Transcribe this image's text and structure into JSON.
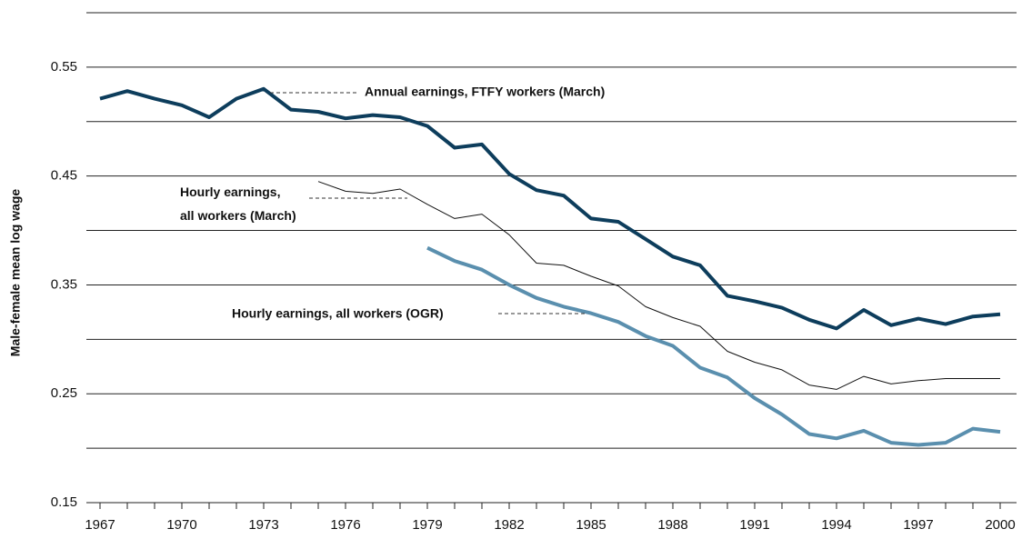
{
  "chart_data": {
    "type": "line",
    "y_label": "Male-female mean log wage",
    "x": [
      1967,
      1968,
      1969,
      1970,
      1971,
      1972,
      1973,
      1974,
      1975,
      1976,
      1977,
      1978,
      1979,
      1980,
      1981,
      1982,
      1983,
      1984,
      1985,
      1986,
      1987,
      1988,
      1989,
      1990,
      1991,
      1992,
      1993,
      1994,
      1995,
      1996,
      1997,
      1998,
      1999,
      2000
    ],
    "series": [
      {
        "name": "Annual earnings, FTFY workers (March)",
        "color": "#0d3d5c",
        "width": 4,
        "values": [
          0.521,
          0.528,
          0.521,
          0.515,
          0.504,
          0.521,
          0.53,
          0.511,
          0.509,
          0.503,
          0.506,
          0.504,
          0.496,
          0.476,
          0.479,
          0.452,
          0.437,
          0.432,
          0.411,
          0.408,
          0.392,
          0.376,
          0.368,
          0.34,
          0.335,
          0.329,
          0.318,
          0.31,
          0.327,
          0.313,
          0.319,
          0.314,
          0.321,
          0.323
        ]
      },
      {
        "name": "Hourly earnings, all workers (March)",
        "color": "#111111",
        "width": 1,
        "values": [
          null,
          null,
          null,
          null,
          null,
          null,
          null,
          null,
          0.445,
          0.436,
          0.434,
          0.438,
          0.424,
          0.411,
          0.415,
          0.396,
          0.37,
          0.368,
          0.358,
          0.349,
          0.33,
          0.32,
          0.312,
          0.289,
          0.279,
          0.272,
          0.258,
          0.254,
          0.266,
          0.259,
          0.262,
          0.264,
          0.264,
          0.264
        ]
      },
      {
        "name": "Hourly earnings, all workers (OGR)",
        "color": "#5a8fae",
        "width": 4,
        "values": [
          null,
          null,
          null,
          null,
          null,
          null,
          null,
          null,
          null,
          null,
          null,
          null,
          0.384,
          0.372,
          0.364,
          0.35,
          0.338,
          0.33,
          0.324,
          0.316,
          0.303,
          0.294,
          0.274,
          0.265,
          0.246,
          0.231,
          0.213,
          0.209,
          0.216,
          0.205,
          0.203,
          0.205,
          0.218,
          0.215
        ]
      }
    ],
    "xlim": [
      1966.5,
      2000.6
    ],
    "xticks": [
      1967,
      {
        "value": 1968,
        "label": null
      },
      {
        "value": 1969,
        "label": null
      },
      1970,
      {
        "value": 1971,
        "label": null
      },
      {
        "value": 1972,
        "label": null
      },
      1973,
      {
        "value": 1974,
        "label": null
      },
      {
        "value": 1975,
        "label": null
      },
      1976,
      {
        "value": 1977,
        "label": null
      },
      {
        "value": 1978,
        "label": null
      },
      1979,
      {
        "value": 1980,
        "label": null
      },
      {
        "value": 1981,
        "label": null
      },
      1982,
      {
        "value": 1983,
        "label": null
      },
      {
        "value": 1984,
        "label": null
      },
      1985,
      {
        "value": 1986,
        "label": null
      },
      {
        "value": 1987,
        "label": null
      },
      1988,
      {
        "value": 1989,
        "label": null
      },
      {
        "value": 1990,
        "label": null
      },
      1991,
      {
        "value": 1992,
        "label": null
      },
      {
        "value": 1993,
        "label": null
      },
      1994,
      {
        "value": 1995,
        "label": null
      },
      {
        "value": 1996,
        "label": null
      },
      1997,
      {
        "value": 1998,
        "label": null
      },
      {
        "value": 1999,
        "label": null
      },
      2000
    ],
    "ylim": [
      0.15,
      0.6
    ],
    "yticks": [
      0.15,
      {
        "value": 0.2,
        "label": null
      },
      0.25,
      {
        "value": 0.3,
        "label": null
      },
      0.35,
      {
        "value": 0.4,
        "label": null
      },
      0.45,
      {
        "value": 0.5,
        "label": null
      },
      0.55,
      {
        "value": 0.6,
        "label": null
      }
    ],
    "grid": true
  }
}
